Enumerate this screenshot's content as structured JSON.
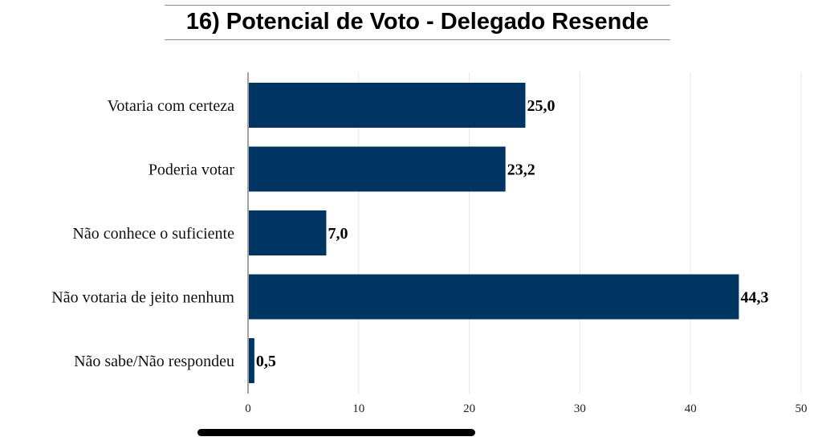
{
  "chart_data": {
    "type": "bar",
    "orientation": "horizontal",
    "title": "16) Potencial de Voto - Delegado Resende",
    "xlabel": "",
    "ylabel": "",
    "categories": [
      "Votaria com certeza",
      "Poderia votar",
      "Não conhece o suficiente",
      "Não votaria de jeito nenhum",
      "Não sabe/Não respondeu"
    ],
    "values": [
      25.0,
      23.2,
      7.0,
      44.3,
      0.5
    ],
    "value_labels": [
      "25,0",
      "23,2",
      "7,0",
      "44,3",
      "0,5"
    ],
    "xlim": [
      0,
      50
    ],
    "x_ticks": [
      "0",
      "10",
      "20",
      "30",
      "40",
      "50"
    ],
    "grid": "vertical",
    "legend": "none",
    "bar_color": "#003462"
  }
}
